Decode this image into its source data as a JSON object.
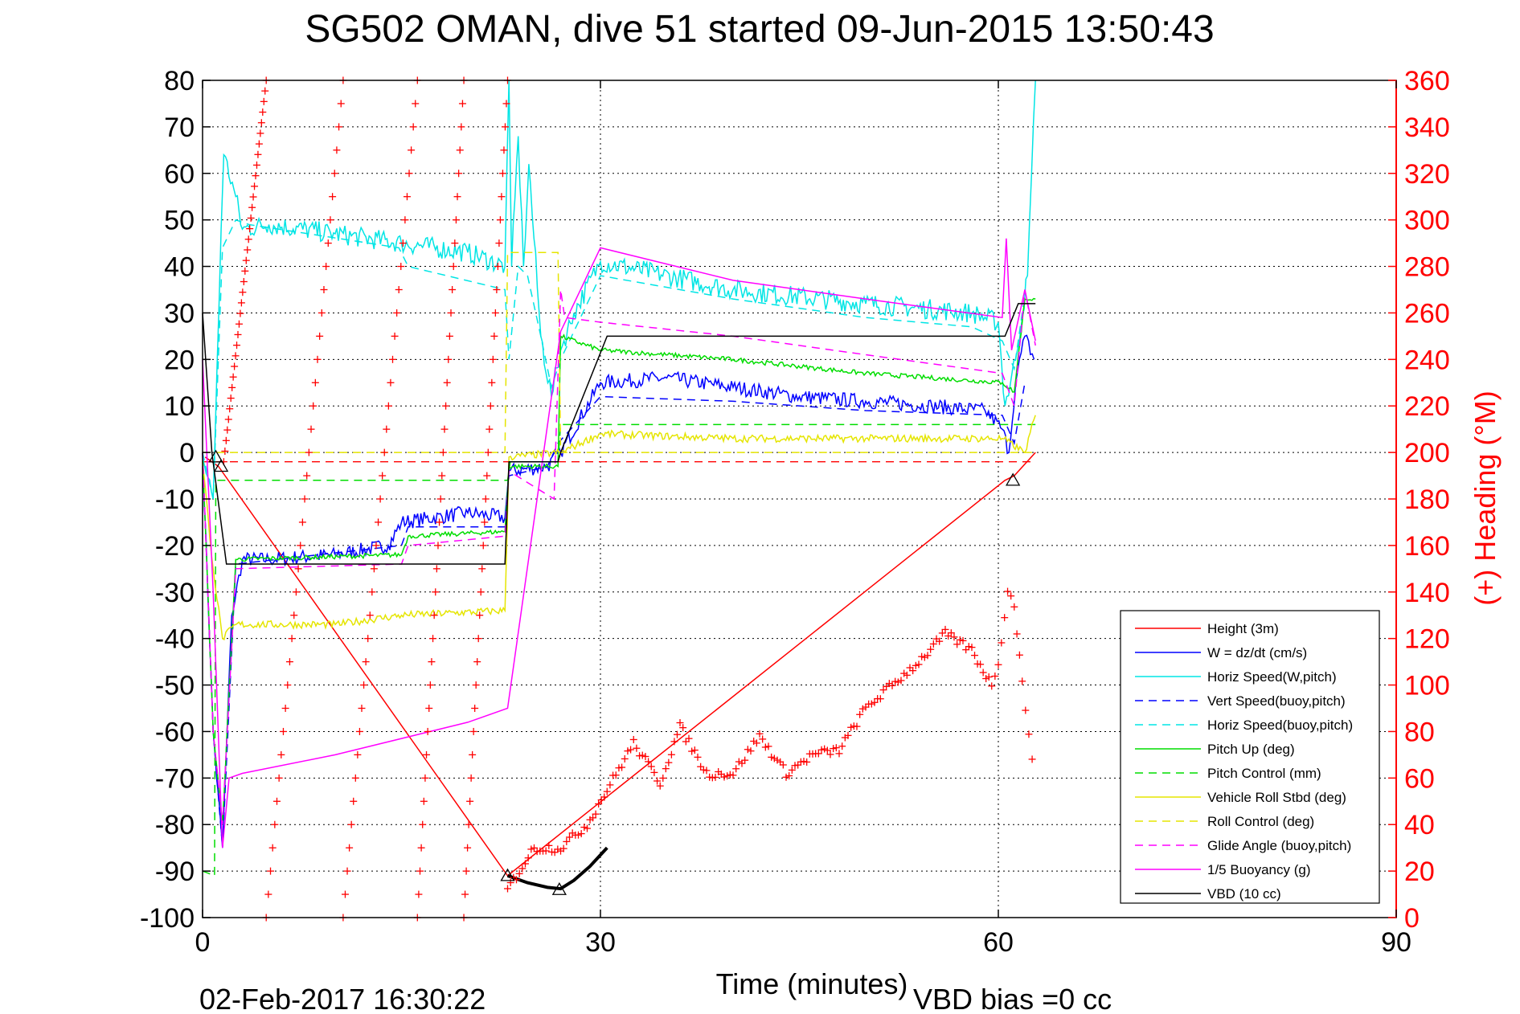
{
  "chart_data": {
    "type": "line",
    "title": "SG502 OMAN, dive 51 started 09-Jun-2015 13:50:43",
    "xlabel": "Time (minutes)",
    "ylabel": "",
    "y2label": "(+) Heading (°M)",
    "footer_left": "02-Feb-2017 16:30:22",
    "footer_right": "VBD bias =0 cc",
    "xlim": [
      0,
      90
    ],
    "ylim": [
      -100,
      80
    ],
    "y2lim": [
      0,
      360
    ],
    "xticks": [
      0,
      30,
      60,
      90
    ],
    "yticks": [
      80,
      70,
      60,
      50,
      40,
      30,
      20,
      10,
      0,
      -10,
      -20,
      -30,
      -40,
      -50,
      -60,
      -70,
      -80,
      -90,
      -100
    ],
    "y2ticks": [
      360,
      340,
      320,
      300,
      280,
      260,
      240,
      220,
      200,
      180,
      160,
      140,
      120,
      100,
      80,
      60,
      40,
      20,
      0
    ],
    "grid": true,
    "legend_position": "bottom-right",
    "series": [
      {
        "name": "Height (3m)",
        "color": "#ff0000",
        "style": "solid",
        "x": [
          0.2,
          1.2,
          23.0,
          60.5,
          61.2,
          62.8
        ],
        "y": [
          -1,
          -3,
          -91,
          -6,
          -5,
          0
        ]
      },
      {
        "name": "W = dz/dt (cm/s)",
        "color": "#0000ff",
        "style": "solid",
        "noise": 1.6,
        "x": [
          0,
          0.8,
          1.5,
          2.2,
          3.0,
          5,
          10,
          14,
          15,
          20,
          22.8,
          23.1,
          26,
          27,
          30,
          35,
          40,
          45,
          50,
          55,
          59,
          60.3,
          60.8,
          61.3,
          62.0,
          62.7
        ],
        "y": [
          0,
          -60,
          -85,
          -35,
          -23,
          -23,
          -22,
          -20,
          -15,
          -13,
          -14,
          -4,
          -3,
          0,
          15,
          16,
          14,
          12,
          11,
          10,
          9,
          5,
          0,
          15,
          25,
          20
        ]
      },
      {
        "name": "Horiz Speed(W,pitch)",
        "color": "#00e5e5",
        "style": "solid",
        "noise": 2.2,
        "x": [
          0,
          0.8,
          1.4,
          1.6,
          2.5,
          3.0,
          5,
          10,
          15,
          20,
          22.8,
          23.1,
          23.3,
          23.8,
          24.2,
          24.6,
          25.5,
          26.3,
          27,
          28,
          30,
          40,
          50,
          58,
          60,
          60.5,
          61.3,
          62.2,
          62.8
        ],
        "y": [
          -1,
          -10,
          48,
          64,
          55,
          48,
          49,
          47,
          45,
          43,
          40,
          80,
          40,
          68,
          40,
          62,
          25,
          12,
          22,
          30,
          41,
          35,
          32,
          30,
          28,
          10,
          20,
          38,
          80
        ]
      },
      {
        "name": "Vert Speed(buoy,pitch)",
        "color": "#0000ff",
        "style": "dashed",
        "x": [
          0,
          0.8,
          1.5,
          2.5,
          15,
          15.5,
          22.8,
          23.1,
          26.0,
          26.8,
          30,
          40,
          50,
          60.3,
          61.2,
          62.0
        ],
        "y": [
          0,
          -60,
          -85,
          -24,
          -20,
          -16,
          -16,
          -5,
          -3,
          2,
          12,
          11,
          9,
          8,
          2,
          15
        ]
      },
      {
        "name": "Horiz Speed(buoy,pitch)",
        "color": "#00e5e5",
        "style": "dashed",
        "x": [
          0,
          0.8,
          1.5,
          2.5,
          3.5,
          14.8,
          15.5,
          22.8,
          23.1,
          23.8,
          24.5,
          25.5,
          26.3,
          27,
          30,
          40,
          50,
          58,
          60.3,
          61.2,
          62.0
        ],
        "y": [
          0,
          -10,
          44,
          50,
          49,
          44,
          40,
          35,
          20,
          40,
          38,
          25,
          14,
          20,
          38,
          33,
          29,
          27,
          24,
          18,
          34
        ]
      },
      {
        "name": "Pitch Up (deg)",
        "color": "#00dd00",
        "style": "solid",
        "noise": 0.5,
        "x": [
          0,
          0.8,
          1.5,
          2.5,
          15,
          15.5,
          22.8,
          23.1,
          26.8,
          27.0,
          30,
          40,
          50,
          60.3,
          61.2,
          62.0,
          62.8
        ],
        "y": [
          0,
          -60,
          -80,
          -23,
          -22,
          -18,
          -17,
          -3,
          -3,
          25,
          22,
          20,
          17,
          15,
          13,
          33,
          33
        ]
      },
      {
        "name": "Pitch Control (mm)",
        "color": "#00dd00",
        "style": "dashed",
        "x": [
          0,
          0.9,
          1.0,
          23.0,
          23.2,
          26.8,
          27.0,
          60.5,
          62.8
        ],
        "y": [
          -90,
          -91,
          -6,
          -6,
          -2,
          -2,
          6,
          6,
          6
        ]
      },
      {
        "name": "Vehicle Roll Stbd (deg)",
        "color": "#e5e500",
        "style": "solid",
        "noise": 0.8,
        "x": [
          0,
          0.8,
          1.5,
          2.5,
          10,
          15,
          22.8,
          23.1,
          27,
          30,
          40,
          50,
          60.3,
          62.0,
          62.8
        ],
        "y": [
          -2,
          -25,
          -40,
          -37,
          -37,
          -35,
          -34,
          -1,
          0,
          4,
          3,
          3,
          3,
          0,
          8
        ]
      },
      {
        "name": "Roll Control (deg)",
        "color": "#e5e500",
        "style": "dashed",
        "x": [
          0,
          0.8,
          1.0,
          22.8,
          23.0,
          26.8,
          27.0,
          60.5,
          62.8
        ],
        "y": [
          0,
          0,
          0,
          0,
          43,
          43,
          0,
          0,
          0
        ]
      },
      {
        "name": "Glide Angle (buoy,pitch)",
        "color": "#ff00ff",
        "style": "dashed",
        "x": [
          0,
          0.8,
          1.5,
          2.5,
          15,
          15.5,
          22.8,
          23.1,
          26.5,
          27.0,
          27.3,
          30,
          40,
          50,
          60.3,
          61.2,
          62.0,
          62.8
        ],
        "y": [
          0,
          -60,
          -80,
          -25,
          -24,
          -20,
          -18,
          -4,
          -10,
          35,
          29,
          28,
          25,
          21,
          17,
          10,
          35,
          23
        ]
      },
      {
        "name": "1/5 Buoyancy (g)",
        "color": "#ff00ff",
        "style": "solid",
        "x": [
          0,
          0.8,
          1.5,
          2.0,
          3.0,
          10,
          20,
          23.0,
          27.0,
          30.0,
          40,
          50,
          60.3,
          60.6,
          61.0,
          62.0,
          62.8
        ],
        "y": [
          20,
          -30,
          -85,
          -70,
          -69,
          -65,
          -58,
          -55,
          26,
          44,
          37,
          33,
          29,
          46,
          22,
          35,
          24
        ]
      },
      {
        "name": "VBD (10 cc)",
        "color": "#000000",
        "style": "solid",
        "x": [
          0,
          0.7,
          1.8,
          22.8,
          23.1,
          26.8,
          27.0,
          30.5,
          60.5,
          61.5,
          62.8
        ],
        "y": [
          30,
          0,
          -24,
          -24,
          -2,
          -2,
          0,
          25,
          25,
          32,
          32
        ]
      }
    ],
    "heading_plus": {
      "name": "(+) Heading (°M)",
      "color": "#ff0000",
      "axis": "right",
      "sweeps": [
        {
          "x0": 1.6,
          "x1": 4.8,
          "y0": 196,
          "y1": 360
        },
        {
          "x0": 4.8,
          "x1": 10.6,
          "y0": 0,
          "y1": 360
        },
        {
          "x0": 10.6,
          "x1": 16.2,
          "y0": 0,
          "y1": 360
        },
        {
          "x0": 16.2,
          "x1": 19.7,
          "y0": 0,
          "y1": 360
        },
        {
          "x0": 19.7,
          "x1": 23.0,
          "y0": 0,
          "y1": 360
        }
      ],
      "x": [
        23.0,
        25.0,
        27.0,
        29.0,
        30.5,
        32.5,
        34.5,
        36.0,
        38.0,
        40.0,
        42.0,
        44.0,
        46.0,
        48.0,
        50.0,
        52.0,
        54.0,
        56.0,
        58.0,
        59.5,
        60.0,
        60.7,
        61.2,
        61.8,
        62.3,
        62.8
      ],
      "y": [
        12,
        30,
        30,
        40,
        55,
        75,
        58,
        82,
        62,
        62,
        78,
        62,
        70,
        72,
        90,
        100,
        110,
        122,
        115,
        100,
        110,
        140,
        135,
        100,
        80,
        60
      ]
    },
    "vbd_thick": {
      "x": [
        23.0,
        24.5,
        26.0,
        27.0,
        28.0,
        29.2,
        30.5
      ],
      "y": [
        -91,
        -92.5,
        -93.5,
        -93.8,
        -92,
        -89,
        -85
      ]
    },
    "markers": {
      "x": [
        1.0,
        1.4,
        23.0,
        26.9,
        61.1
      ],
      "y": [
        -1,
        -3,
        -91,
        -94,
        -6
      ]
    },
    "heading_dashed_red": {
      "y": -2,
      "x": [
        0,
        62.8
      ]
    }
  }
}
